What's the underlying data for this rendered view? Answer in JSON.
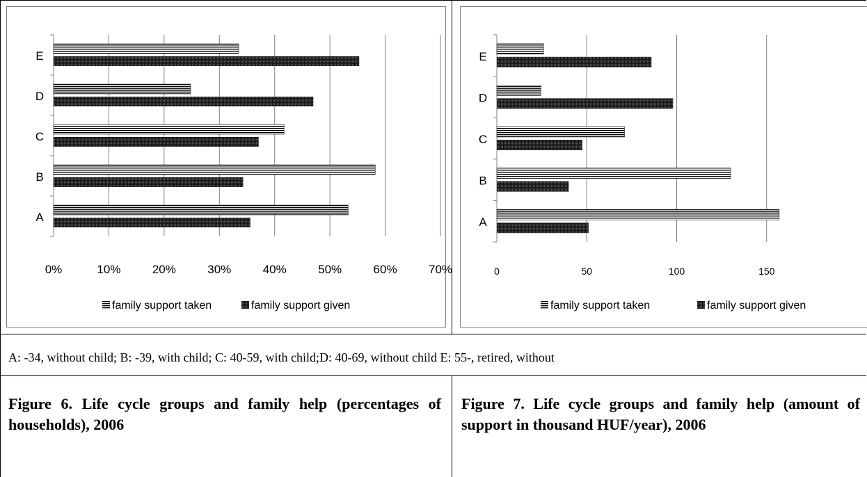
{
  "chart_data": [
    {
      "type": "bar",
      "orientation": "horizontal",
      "categories": [
        "A",
        "B",
        "C",
        "D",
        "E"
      ],
      "series": [
        {
          "name": "family support taken",
          "values": [
            53.3,
            58.2,
            41.7,
            24.8,
            33.5
          ],
          "pattern": "horizontal-lines"
        },
        {
          "name": "family support given",
          "values": [
            35.6,
            34.3,
            37.1,
            47.0,
            55.3
          ],
          "pattern": "dense-dots"
        }
      ],
      "xlim": [
        0,
        70
      ],
      "xticks": [
        "0%",
        "10%",
        "20%",
        "30%",
        "40%",
        "50%",
        "60%",
        "70%"
      ],
      "xtick_values": [
        0,
        10,
        20,
        30,
        40,
        50,
        60,
        70
      ],
      "grid": true,
      "legend": "bottom"
    },
    {
      "type": "bar",
      "orientation": "horizontal",
      "categories": [
        "A",
        "B",
        "C",
        "D",
        "E"
      ],
      "series": [
        {
          "name": "family support taken",
          "values": [
            157,
            130,
            71,
            24.5,
            26
          ],
          "pattern": "horizontal-lines"
        },
        {
          "name": "family support given",
          "values": [
            51,
            40,
            47.5,
            98,
            86
          ],
          "pattern": "dense-dots"
        }
      ],
      "xlim": [
        0,
        200
      ],
      "xticks": [
        "0",
        "50",
        "100",
        "150"
      ],
      "xtick_values": [
        0,
        50,
        100,
        150
      ],
      "grid": true,
      "legend": "bottom"
    }
  ],
  "note": "A: -34,  without child; B: -39, with child; C: 40-59, with child;D: 40-69, without child E: 55-, retired, without",
  "figures": [
    {
      "title": "Figure 6. Life cycle groups and family help (percentages of households), 2006"
    },
    {
      "title": "Figure 7. Life cycle groups and family help (amount of support in thousand HUF/year), 2006"
    }
  ],
  "colors": {
    "bar_given": "#1a1a1a",
    "bar_taken_lines": "#000000",
    "grid": "#808080",
    "axis": "#808080"
  }
}
